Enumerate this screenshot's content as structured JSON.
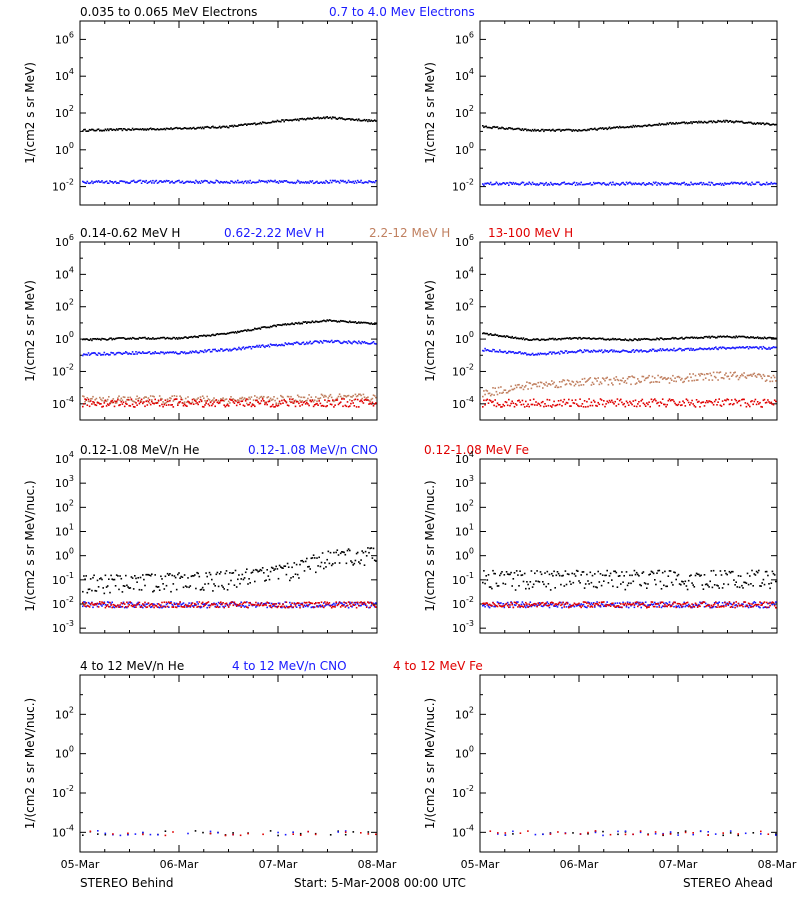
{
  "footer": {
    "left": "STEREO Behind",
    "center": "Start:  5-Mar-2008 00:00 UTC",
    "right": "STEREO Ahead"
  },
  "x_tick_labels": [
    "05-Mar",
    "06-Mar",
    "07-Mar",
    "08-Mar"
  ],
  "colors": {
    "black": "#000000",
    "blue": "#1a1aff",
    "tan": "#c08060",
    "red": "#e00000"
  },
  "chart_data": [
    {
      "type": "scatter",
      "row": 0,
      "ylabel": "1/(cm2 s sr MeV)",
      "yscale": "log",
      "ylim_exp": [
        -3,
        7
      ],
      "ytick_exps": [
        -2,
        0,
        2,
        4,
        6
      ],
      "x": [
        "05-Mar",
        "06-Mar",
        "07-Mar",
        "08-Mar"
      ],
      "legend": [
        {
          "name": "0.035 to 0.065 MeV Electrons",
          "color": "#000000"
        },
        {
          "name": "0.7 to 4.0 Mev Electrons",
          "color": "#1a1aff"
        }
      ],
      "panels": [
        {
          "spacecraft": "STEREO Behind",
          "series": [
            {
              "name": "0.035 to 0.065 MeV Electrons",
              "color": "#000000",
              "approx_log10": [
                1.1,
                1.15,
                1.2,
                1.3,
                1.6,
                1.8,
                1.6
              ]
            },
            {
              "name": "0.7 to 4.0 Mev Electrons",
              "color": "#1a1aff",
              "approx_log10": [
                -1.7,
                -1.7,
                -1.7,
                -1.7,
                -1.7,
                -1.7,
                -1.7
              ]
            }
          ]
        },
        {
          "spacecraft": "STEREO Ahead",
          "series": [
            {
              "name": "0.035 to 0.065 MeV Electrons",
              "color": "#000000",
              "approx_log10": [
                1.3,
                1.1,
                1.1,
                1.3,
                1.5,
                1.6,
                1.4
              ]
            },
            {
              "name": "0.7 to 4.0 Mev Electrons",
              "color": "#1a1aff",
              "approx_log10": [
                -1.8,
                -1.8,
                -1.8,
                -1.8,
                -1.8,
                -1.8,
                -1.8
              ]
            }
          ]
        }
      ]
    },
    {
      "type": "scatter",
      "row": 1,
      "ylabel": "1/(cm2 s sr MeV)",
      "yscale": "log",
      "ylim_exp": [
        -5,
        6
      ],
      "ytick_exps": [
        -4,
        -2,
        0,
        2,
        4,
        6
      ],
      "x": [
        "05-Mar",
        "06-Mar",
        "07-Mar",
        "08-Mar"
      ],
      "legend": [
        {
          "name": "0.14-0.62 MeV H",
          "color": "#000000"
        },
        {
          "name": "0.62-2.22 MeV H",
          "color": "#1a1aff"
        },
        {
          "name": "2.2-12 MeV H",
          "color": "#c08060"
        },
        {
          "name": "13-100 MeV H",
          "color": "#e00000"
        }
      ],
      "panels": [
        {
          "spacecraft": "STEREO Behind",
          "series": [
            {
              "name": "0.14-0.62 MeV H",
              "color": "#000000",
              "approx_log10": [
                0.0,
                0.1,
                0.1,
                0.4,
                0.9,
                1.2,
                1.0
              ]
            },
            {
              "name": "0.62-2.22 MeV H",
              "color": "#1a1aff",
              "approx_log10": [
                -0.9,
                -0.8,
                -0.8,
                -0.6,
                -0.3,
                -0.1,
                -0.2
              ]
            },
            {
              "name": "2.2-12 MeV H",
              "color": "#c08060",
              "approx_log10": [
                -3.7,
                -3.7,
                -3.7,
                -3.7,
                -3.7,
                -3.6,
                -3.6
              ]
            },
            {
              "name": "13-100 MeV H",
              "color": "#e00000",
              "approx_log10": [
                -3.9,
                -3.9,
                -3.9,
                -3.9,
                -3.9,
                -3.9,
                -3.9
              ]
            }
          ]
        },
        {
          "spacecraft": "STEREO Ahead",
          "series": [
            {
              "name": "0.14-0.62 MeV H",
              "color": "#000000",
              "approx_log10": [
                0.4,
                0.0,
                0.1,
                0.0,
                0.1,
                0.2,
                0.1
              ]
            },
            {
              "name": "0.62-2.22 MeV H",
              "color": "#1a1aff",
              "approx_log10": [
                -0.6,
                -0.9,
                -0.7,
                -0.7,
                -0.6,
                -0.5,
                -0.5
              ]
            },
            {
              "name": "2.2-12 MeV H",
              "color": "#c08060",
              "approx_log10": [
                -3.3,
                -2.8,
                -2.6,
                -2.5,
                -2.4,
                -2.2,
                -2.4
              ]
            },
            {
              "name": "13-100 MeV H",
              "color": "#e00000",
              "approx_log10": [
                -3.9,
                -3.9,
                -3.9,
                -3.9,
                -3.9,
                -3.9,
                -3.9
              ]
            }
          ]
        }
      ]
    },
    {
      "type": "scatter",
      "row": 2,
      "ylabel": "1/(cm2 s sr MeV/nuc.)",
      "yscale": "log",
      "ylim_exp": [
        -3.2,
        4
      ],
      "ytick_exps": [
        -3,
        -2,
        -1,
        0,
        1,
        2,
        3,
        4
      ],
      "x": [
        "05-Mar",
        "06-Mar",
        "07-Mar",
        "08-Mar"
      ],
      "legend": [
        {
          "name": "0.12-1.08 MeV/n He",
          "color": "#000000"
        },
        {
          "name": "0.12-1.08 MeV/n CNO",
          "color": "#1a1aff"
        },
        {
          "name": "0.12-1.08 MeV Fe",
          "color": "#e00000"
        }
      ],
      "panels": [
        {
          "spacecraft": "STEREO Behind",
          "series": [
            {
              "name": "0.12-1.08 MeV/n He",
              "color": "#000000",
              "approx_log10": [
                -0.9,
                -0.85,
                -0.8,
                -0.7,
                -0.5,
                0.1,
                0.3
              ]
            },
            {
              "name": "0.12-1.08 MeV/n CNO",
              "color": "#1a1aff",
              "approx_log10": [
                -2.0,
                -2.0,
                -2.0,
                -2.0,
                -2.0,
                -2.0,
                -2.0
              ]
            },
            {
              "name": "0.12-1.08 MeV Fe",
              "color": "#e00000",
              "approx_log10": [
                -2.0,
                -2.0,
                -2.0,
                -2.0,
                -2.0,
                -2.0,
                -2.0
              ]
            }
          ]
        },
        {
          "spacecraft": "STEREO Ahead",
          "series": [
            {
              "name": "0.12-1.08 MeV/n He",
              "color": "#000000",
              "approx_log10": [
                -0.7,
                -0.7,
                -0.7,
                -0.7,
                -0.7,
                -0.7,
                -0.7
              ]
            },
            {
              "name": "0.12-1.08 MeV/n CNO",
              "color": "#1a1aff",
              "approx_log10": [
                -2.0,
                -2.0,
                -2.0,
                -2.0,
                -2.0,
                -2.0,
                -2.0
              ]
            },
            {
              "name": "0.12-1.08 MeV Fe",
              "color": "#e00000",
              "approx_log10": [
                -2.0,
                -2.0,
                -2.0,
                -2.0,
                -2.0,
                -2.0,
                -2.0
              ]
            }
          ]
        }
      ]
    },
    {
      "type": "scatter",
      "row": 3,
      "ylabel": "1/(cm2 s sr MeV/nuc.)",
      "yscale": "log",
      "ylim_exp": [
        -5,
        4
      ],
      "ytick_exps": [
        -4,
        -2,
        0,
        2
      ],
      "x": [
        "05-Mar",
        "06-Mar",
        "07-Mar",
        "08-Mar"
      ],
      "legend": [
        {
          "name": "4 to 12 MeV/n He",
          "color": "#000000"
        },
        {
          "name": "4 to 12 MeV/n CNO",
          "color": "#1a1aff"
        },
        {
          "name": "4 to 12 MeV Fe",
          "color": "#e00000"
        }
      ],
      "panels": [
        {
          "spacecraft": "STEREO Behind",
          "series": [
            {
              "name": "4 to 12 MeV/n He",
              "color": "#000000",
              "approx_log10": [
                -4.0,
                -4.0,
                -4.0,
                -4.0,
                -4.0,
                -4.0,
                -4.0
              ]
            },
            {
              "name": "4 to 12 MeV/n CNO",
              "color": "#1a1aff",
              "approx_log10": [
                -4.0,
                -4.0,
                -4.0,
                -4.0,
                -4.0,
                -4.0,
                -4.0
              ]
            },
            {
              "name": "4 to 12 MeV Fe",
              "color": "#e00000",
              "approx_log10": [
                -4.0,
                -4.0,
                -4.0,
                -4.0,
                -4.0,
                -4.0,
                -4.0
              ]
            }
          ]
        },
        {
          "spacecraft": "STEREO Ahead",
          "series": [
            {
              "name": "4 to 12 MeV/n He",
              "color": "#000000",
              "approx_log10": [
                -4.0,
                -4.0,
                -4.0,
                -4.0,
                -4.0,
                -4.0,
                -4.0
              ]
            },
            {
              "name": "4 to 12 MeV/n CNO",
              "color": "#1a1aff",
              "approx_log10": [
                -4.0,
                -4.0,
                -4.0,
                -4.0,
                -4.0,
                -4.0,
                -4.0
              ]
            },
            {
              "name": "4 to 12 MeV Fe",
              "color": "#e00000",
              "approx_log10": [
                -4.0,
                -4.0,
                -4.0,
                -4.0,
                -4.0,
                -4.0,
                -4.0
              ]
            }
          ]
        }
      ]
    }
  ]
}
